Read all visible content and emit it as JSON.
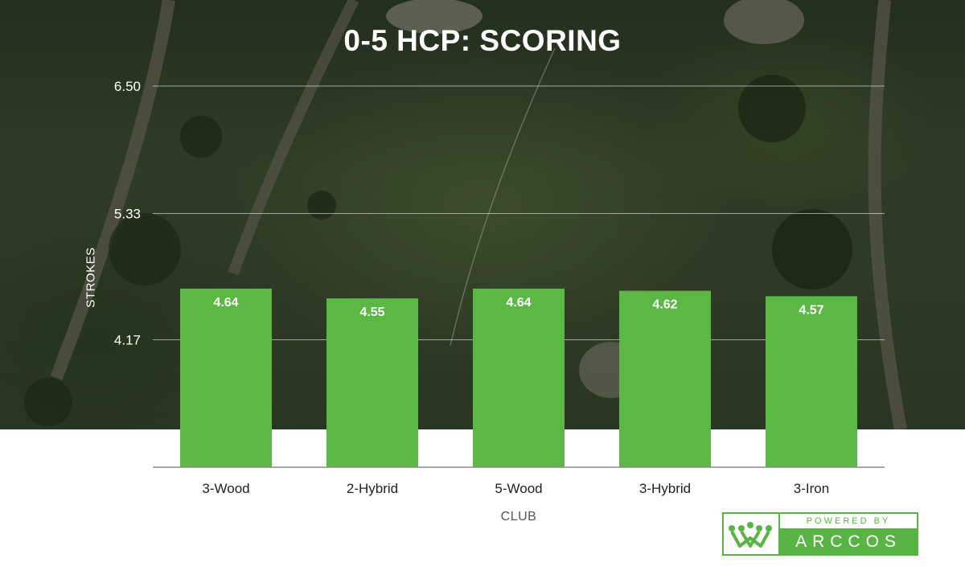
{
  "colors": {
    "bar": "#5bb845",
    "grid": "rgba(255,255,255,0.55)",
    "axis_line": "#8a8a8a",
    "logo_green": "#58b544"
  },
  "chart_data": {
    "type": "bar",
    "title": "0-5 HCP: SCORING",
    "xlabel": "CLUB",
    "ylabel": "STROKES",
    "categories": [
      "3-Wood",
      "2-Hybrid",
      "5-Wood",
      "3-Hybrid",
      "3-Iron"
    ],
    "values": [
      4.64,
      4.55,
      4.64,
      4.62,
      4.57
    ],
    "data_labels": [
      "4.64",
      "4.55",
      "4.64",
      "4.62",
      "4.57"
    ],
    "yticks": [
      "4.17",
      "5.33",
      "6.50"
    ],
    "ylim": [
      3,
      6.5
    ],
    "grid": true,
    "legend": "none"
  },
  "logo": {
    "top_text": "POWERED BY",
    "brand": "ARCCOS",
    "icon": "crown-icon"
  }
}
